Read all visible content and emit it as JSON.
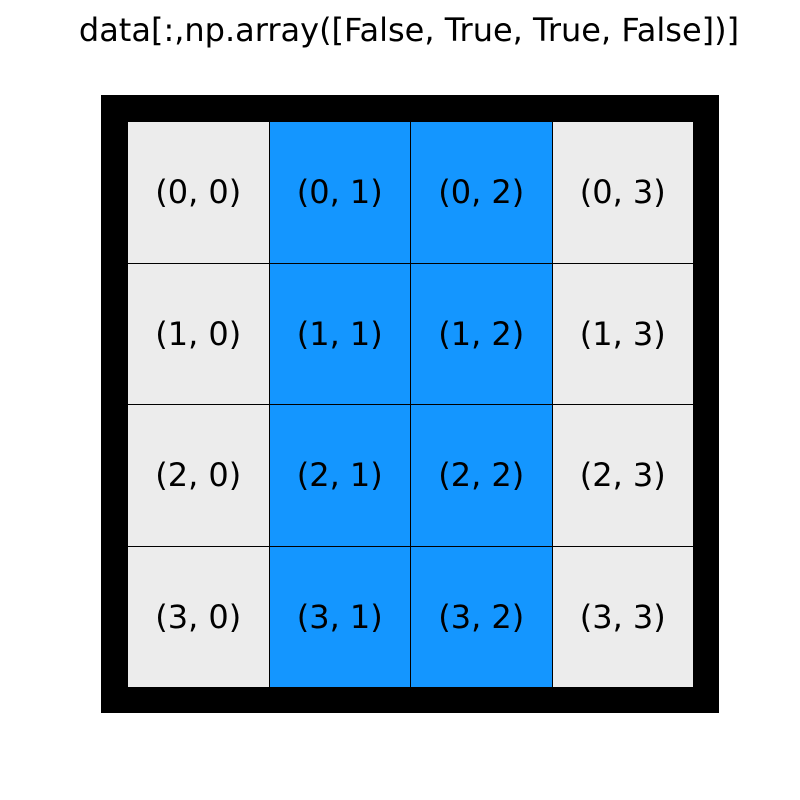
{
  "title": "data[:,np.array([False, True, True, False])]",
  "colors": {
    "selected": "#1496ff",
    "unselected": "#ececec",
    "border": "#000000"
  },
  "mask": [
    false,
    true,
    true,
    false
  ],
  "grid": [
    [
      "(0, 0)",
      "(0, 1)",
      "(0, 2)",
      "(0, 3)"
    ],
    [
      "(1, 0)",
      "(1, 1)",
      "(1, 2)",
      "(1, 3)"
    ],
    [
      "(2, 0)",
      "(2, 1)",
      "(2, 2)",
      "(2, 3)"
    ],
    [
      "(3, 0)",
      "(3, 1)",
      "(3, 2)",
      "(3, 3)"
    ]
  ]
}
